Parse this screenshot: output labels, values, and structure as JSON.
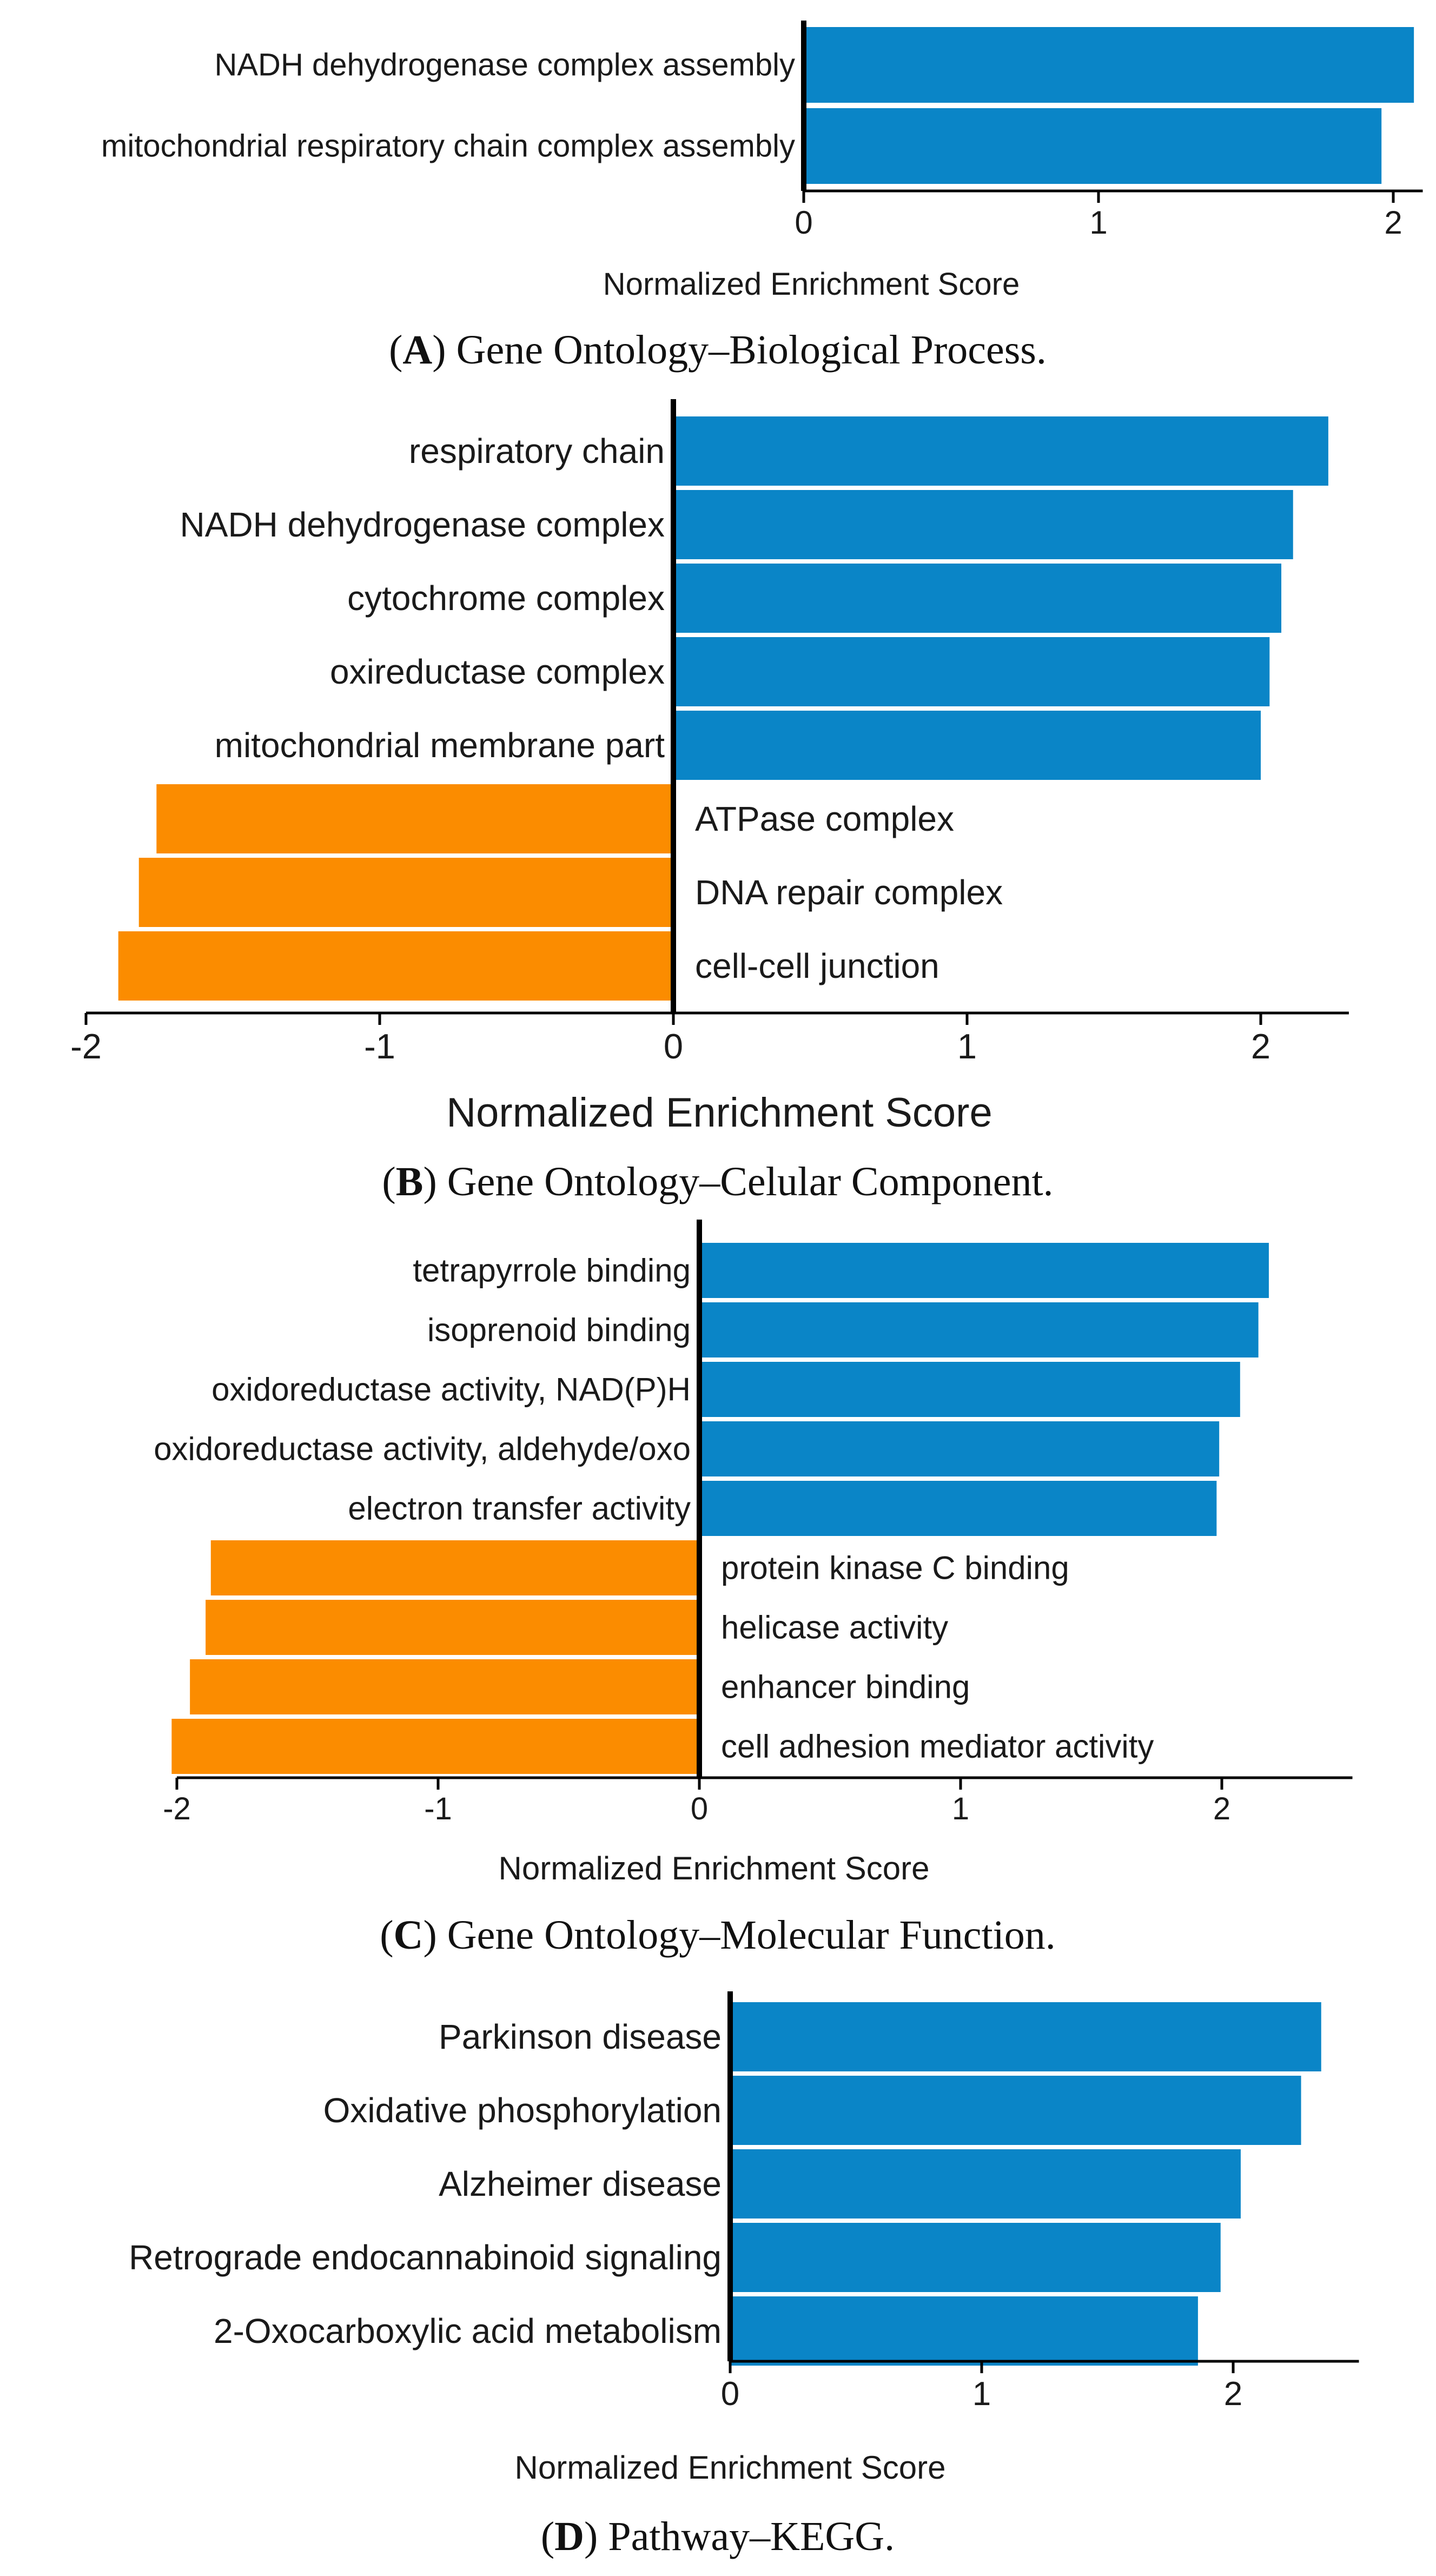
{
  "colors": {
    "positive": "#0a85c7",
    "negative": "#fb8c00",
    "axis": "#000000",
    "text": "#1a1a1a"
  },
  "chart_data": [
    {
      "type": "bar",
      "orientation": "horizontal",
      "caption_letter": "A",
      "caption_text": " Gene Ontology–Biological Process.",
      "xlabel": "Normalized Enrichment Score",
      "xticks": [
        "0",
        "1",
        "2"
      ],
      "xlim": [
        0,
        2.1
      ],
      "categories": [
        "NADH dehydrogenase complex assembly",
        "mitochondrial respiratory chain complex assembly"
      ],
      "values": [
        2.07,
        1.96
      ]
    },
    {
      "type": "bar",
      "orientation": "horizontal",
      "caption_letter": "B",
      "caption_text": " Gene Ontology–Celular Component.",
      "xlabel": "Normalized Enrichment Score",
      "xticks": [
        "-2",
        "-1",
        "0",
        "1",
        "2"
      ],
      "xlim": [
        -2.0,
        2.3
      ],
      "categories": [
        "respiratory chain",
        "NADH dehydrogenase complex",
        "cytochrome complex",
        "oxireductase complex",
        "mitochondrial membrane part",
        "ATPase complex",
        "DNA repair complex",
        "cell-cell junction"
      ],
      "values": [
        2.23,
        2.11,
        2.07,
        2.03,
        2.0,
        -1.76,
        -1.82,
        -1.89
      ]
    },
    {
      "type": "bar",
      "orientation": "horizontal",
      "caption_letter": "C",
      "caption_text": " Gene Ontology–Molecular Function.",
      "xlabel": "Normalized Enrichment Score",
      "xticks": [
        "-2",
        "-1",
        "0",
        "1",
        "2"
      ],
      "xlim": [
        -2.0,
        2.5
      ],
      "categories": [
        "tetrapyrrole binding",
        "isoprenoid binding",
        "oxidoreductase activity, NAD(P)H",
        "oxidoreductase activity, aldehyde/oxo",
        "electron transfer activity",
        "protein kinase C binding",
        "helicase activity",
        "enhancer binding",
        "cell adhesion mediator activity"
      ],
      "values": [
        2.18,
        2.14,
        2.07,
        1.99,
        1.98,
        -1.87,
        -1.89,
        -1.95,
        -2.02
      ]
    },
    {
      "type": "bar",
      "orientation": "horizontal",
      "caption_letter": "D",
      "caption_text": " Pathway–KEGG.",
      "xlabel": "Normalized Enrichment Score",
      "xticks": [
        "0",
        "1",
        "2"
      ],
      "xlim": [
        0,
        2.5
      ],
      "categories": [
        "Parkinson disease",
        "Oxidative phosphorylation",
        "Alzheimer disease",
        "Retrograde endocannabinoid signaling",
        "2-Oxocarboxylic acid metabolism"
      ],
      "values": [
        2.35,
        2.27,
        2.03,
        1.95,
        1.86
      ]
    }
  ]
}
